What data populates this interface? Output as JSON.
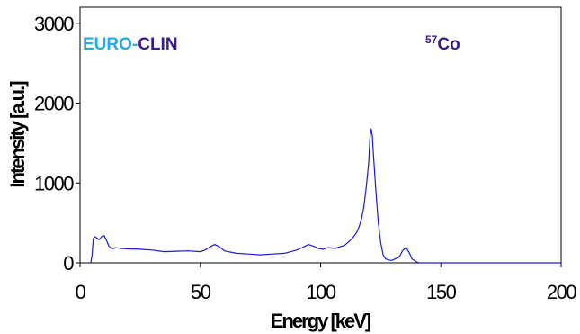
{
  "chart_data": {
    "type": "line",
    "title": "",
    "xlabel": "Energy [keV]",
    "ylabel": "Intensity [a.u.]",
    "xlim": [
      0,
      200
    ],
    "ylim": [
      0,
      3200
    ],
    "xticks": [
      0,
      50,
      100,
      150,
      200
    ],
    "yticks": [
      0,
      1000,
      2000,
      3000
    ],
    "grid": false,
    "annotations": {
      "brand_part1": "EURO-",
      "brand_part2": "CLIN",
      "isotope_mass": "57",
      "isotope_symbol": "Co"
    },
    "colors": {
      "line": "#1a1adc",
      "brand_part1": "#27a9e1",
      "brand_part2": "#3a1a8c",
      "isotope": "#3a1a8c"
    },
    "series": [
      {
        "x": [
          4.5,
          5,
          5.5,
          6,
          7,
          8,
          9,
          10,
          11,
          12,
          13,
          14,
          15,
          17,
          20,
          25,
          30,
          35,
          40,
          45,
          50,
          52,
          54,
          56,
          58,
          60,
          65,
          70,
          75,
          80,
          85,
          90,
          93,
          95,
          97,
          99,
          101,
          103,
          106,
          110,
          113,
          115,
          116,
          117,
          118,
          119,
          120,
          120.5,
          121,
          121.5,
          122,
          123,
          124,
          125,
          126,
          127,
          128,
          129,
          130,
          131,
          132,
          133,
          134,
          135,
          136,
          137,
          138,
          140,
          141,
          145,
          150,
          160,
          180,
          200
        ],
        "y": [
          0,
          100,
          300,
          330,
          310,
          290,
          330,
          340,
          280,
          210,
          180,
          180,
          190,
          180,
          175,
          170,
          160,
          140,
          145,
          150,
          140,
          160,
          200,
          230,
          200,
          150,
          120,
          110,
          100,
          110,
          120,
          160,
          200,
          230,
          210,
          180,
          170,
          190,
          180,
          220,
          300,
          380,
          450,
          550,
          700,
          950,
          1250,
          1550,
          1680,
          1600,
          1350,
          900,
          500,
          250,
          100,
          50,
          40,
          30,
          35,
          50,
          60,
          90,
          150,
          180,
          170,
          120,
          50,
          10,
          0,
          0,
          0,
          0,
          0,
          0
        ]
      }
    ]
  }
}
